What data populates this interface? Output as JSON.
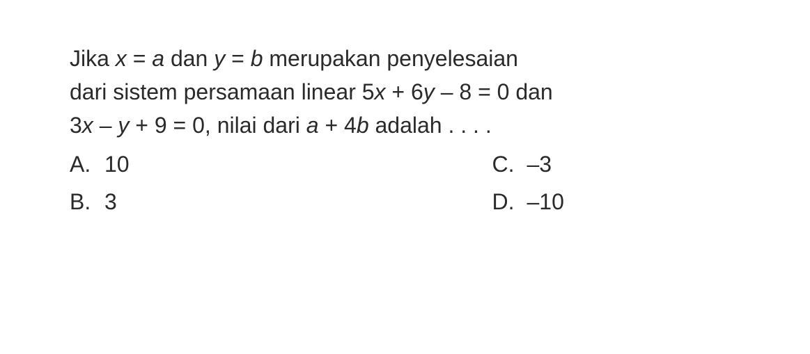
{
  "question": {
    "line1_part1": "Jika ",
    "line1_var1": "x",
    "line1_part2": " = ",
    "line1_var2": "a",
    "line1_part3": " dan ",
    "line1_var3": "y",
    "line1_part4": " = ",
    "line1_var4": "b",
    "line1_part5": " merupakan penyelesaian",
    "line2_part1": "dari sistem persamaan linear 5",
    "line2_var1": "x",
    "line2_part2": " + 6",
    "line2_var2": "y",
    "line2_part3": " – 8 = 0 dan",
    "line3_part1": "3",
    "line3_var1": "x",
    "line3_part2": " – ",
    "line3_var2": "y",
    "line3_part3": " + 9 = 0, nilai dari ",
    "line3_var3": "a",
    "line3_part4": " + 4",
    "line3_var4": "b",
    "line3_part5": " adalah . . . ."
  },
  "options": {
    "a_label": "A.",
    "a_value": "10",
    "b_label": "B.",
    "b_value": "3",
    "c_label": "C.",
    "c_value": "–3",
    "d_label": "D.",
    "d_value": "–10"
  },
  "styling": {
    "font_size_pt": 24,
    "text_color": "#2a2a2a",
    "background_color": "#ffffff",
    "font_family": "Arial",
    "line_height": 1.5
  }
}
